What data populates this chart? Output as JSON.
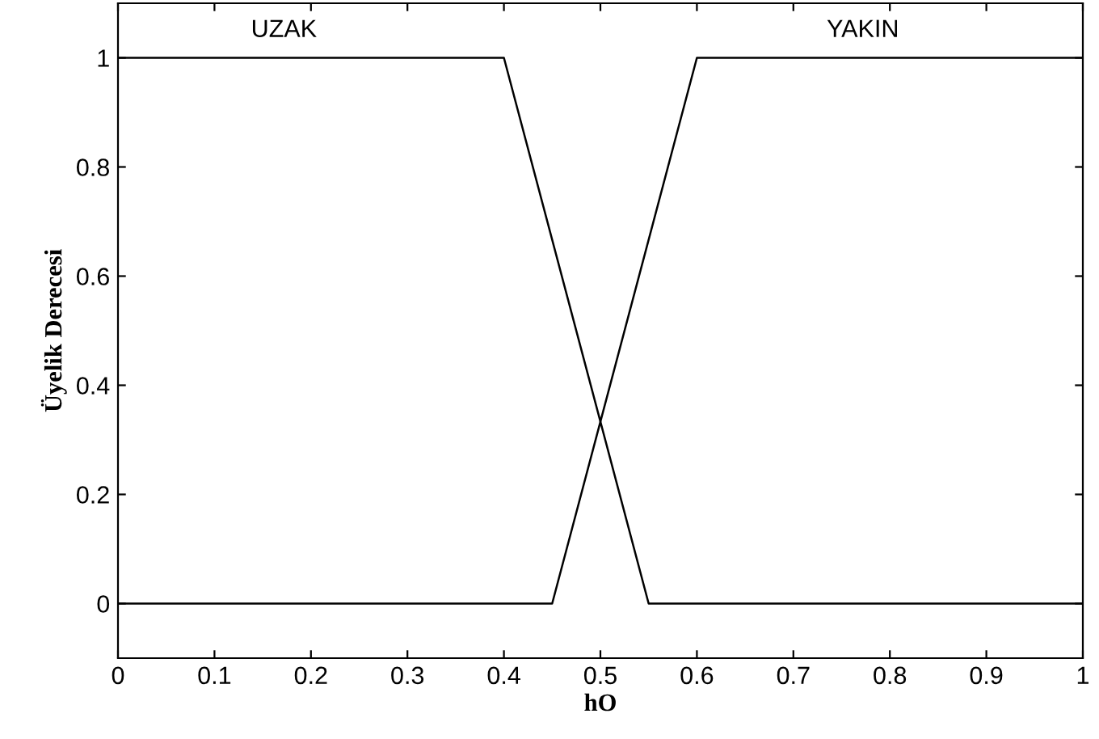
{
  "chart_data": {
    "type": "line",
    "xlabel": "hO",
    "ylabel": "Üyelik Derecesi",
    "series": [
      {
        "name": "UZAK",
        "color": "#000000",
        "x": [
          0,
          0.4,
          0.55,
          1
        ],
        "values": [
          1,
          1,
          0,
          0
        ]
      },
      {
        "name": "YAKIN",
        "color": "#000000",
        "x": [
          0,
          0.45,
          0.6,
          1
        ],
        "values": [
          0,
          0,
          1,
          1
        ]
      }
    ],
    "xlim": [
      0,
      1
    ],
    "ylim": [
      -0.1,
      1.1
    ],
    "xticks": [
      0,
      0.1,
      0.2,
      0.3,
      0.4,
      0.5,
      0.6,
      0.7,
      0.8,
      0.9,
      1
    ],
    "yticks": [
      0,
      0.2,
      0.4,
      0.6,
      0.8,
      1
    ],
    "grid": false,
    "legend": "top",
    "marker": "none",
    "line_style": "solid"
  }
}
